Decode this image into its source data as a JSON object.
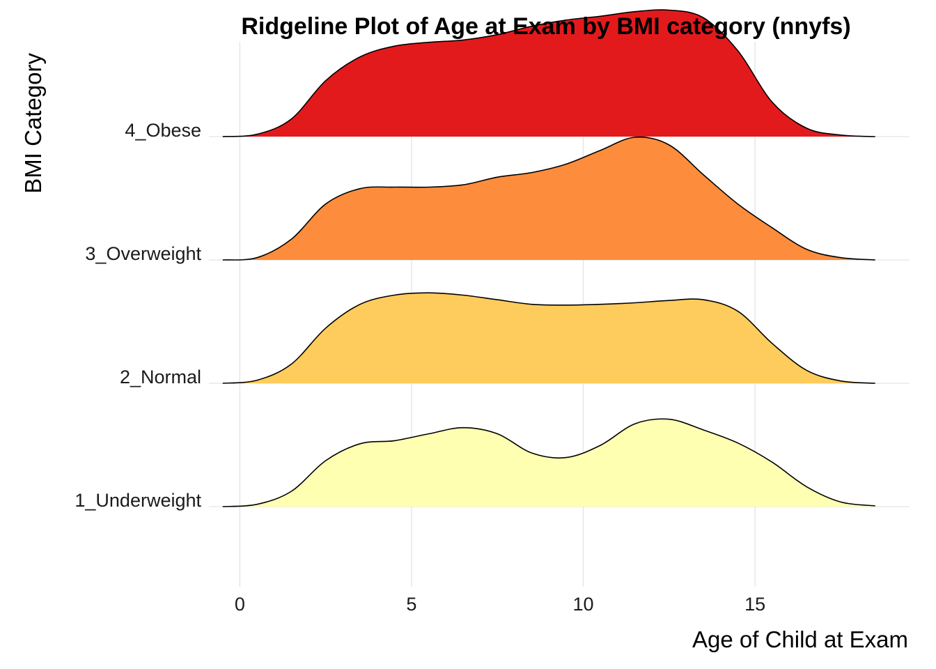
{
  "chart_data": {
    "type": "area",
    "subtype": "ridgeline",
    "title": "Ridgeline Plot of Age at Exam by BMI category (nnyfs)",
    "xlabel": "Age of Child at Exam",
    "ylabel": "BMI Category",
    "xlim": [
      -0.9,
      19.5
    ],
    "x_range_of_densities": [
      -0.5,
      18.5
    ],
    "x_ticks": [
      0,
      5,
      10,
      15
    ],
    "grid": true,
    "legend": "none",
    "categories": [
      "1_Underweight",
      "2_Normal",
      "3_Overweight",
      "4_Obese"
    ],
    "density_x": [
      -0.5,
      0.5,
      1.5,
      2.5,
      3.5,
      4.5,
      5.5,
      6.5,
      7.5,
      8.5,
      9.5,
      10.5,
      11.5,
      12.5,
      13.5,
      14.5,
      15.5,
      16.5,
      17.5,
      18.5
    ],
    "series": [
      {
        "name": "1_Underweight",
        "color": "#FFFFB2",
        "density": [
          0.0,
          0.03,
          0.2,
          0.6,
          0.82,
          0.86,
          0.95,
          1.03,
          0.95,
          0.7,
          0.64,
          0.8,
          1.08,
          1.14,
          1.0,
          0.83,
          0.58,
          0.26,
          0.06,
          0.01
        ]
      },
      {
        "name": "2_Normal",
        "color": "#FECC5C",
        "density": [
          0.0,
          0.04,
          0.25,
          0.72,
          1.03,
          1.15,
          1.18,
          1.15,
          1.09,
          1.03,
          1.02,
          1.03,
          1.05,
          1.08,
          1.09,
          0.94,
          0.52,
          0.17,
          0.03,
          0.0
        ]
      },
      {
        "name": "3_Overweight",
        "color": "#FD8D3C",
        "density": [
          0.0,
          0.03,
          0.27,
          0.73,
          0.93,
          0.95,
          0.95,
          0.98,
          1.08,
          1.14,
          1.25,
          1.43,
          1.6,
          1.5,
          1.11,
          0.73,
          0.42,
          0.14,
          0.03,
          0.0
        ]
      },
      {
        "name": "4_Obese",
        "color": "#E31A1C",
        "density": [
          0.0,
          0.03,
          0.23,
          0.73,
          1.04,
          1.18,
          1.23,
          1.26,
          1.33,
          1.44,
          1.52,
          1.57,
          1.63,
          1.65,
          1.55,
          1.12,
          0.45,
          0.11,
          0.02,
          0.0
        ]
      }
    ]
  }
}
